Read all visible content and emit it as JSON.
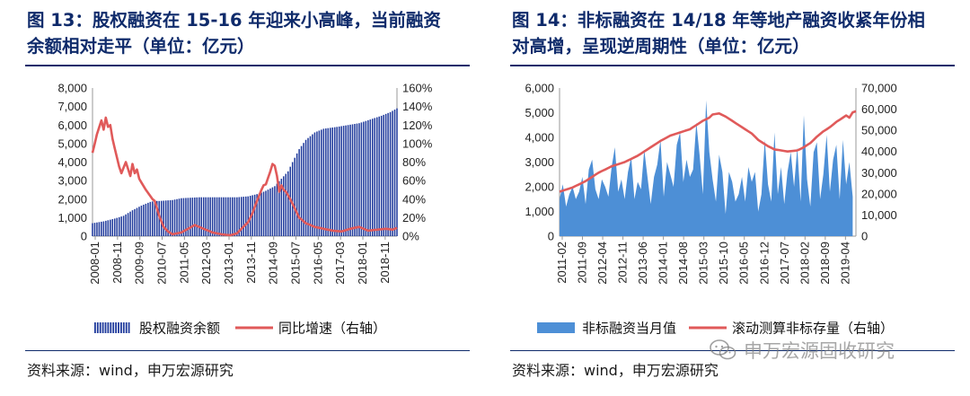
{
  "left": {
    "title_line1": "图 13：股权融资在 15-16 年迎来小高峰，当前融资",
    "title_line2": "余额相对走平（单位：亿元）",
    "source": "资料来源：wind，申万宏源研究",
    "legend_bar": "股权融资余额",
    "legend_line": "同比增速（右轴）"
  },
  "right": {
    "title_line1": "图 14：非标融资在 14/18 年等地产融资收紧年份相",
    "title_line2": "对高增，呈现逆周期性（单位：亿元）",
    "source": "资料来源：wind，申万宏源研究",
    "legend_area": "非标融资当月值",
    "legend_line": "滚动测算非标存量（右轴）"
  },
  "watermark": "申万宏源固收研究",
  "colors": {
    "bar": "#1f3a9c",
    "area": "#4d8fd6",
    "line": "#e05a5a",
    "title": "#0f2b6b"
  },
  "chart_data": [
    {
      "type": "bar",
      "x_tick_labels": [
        "2008-01",
        "2008-11",
        "2009-09",
        "2010-07",
        "2011-05",
        "2012-03",
        "2013-01",
        "2013-11",
        "2014-09",
        "2015-07",
        "2016-05",
        "2017-03",
        "2018-01",
        "2018-11"
      ],
      "y_left_ticks": [
        "0",
        "1,000",
        "2,000",
        "3,000",
        "4,000",
        "5,000",
        "6,000",
        "7,000",
        "8,000"
      ],
      "y_right_ticks": [
        "0%",
        "20%",
        "40%",
        "60%",
        "80%",
        "100%",
        "120%",
        "140%",
        "160%"
      ],
      "ylim_left": [
        0,
        8000
      ],
      "ylim_right": [
        0,
        160
      ],
      "series": [
        {
          "name": "股权融资余额",
          "type": "bar",
          "axis": "left",
          "points": [
            [
              0,
              700
            ],
            [
              5,
              800
            ],
            [
              10,
              950
            ],
            [
              14,
              1100
            ],
            [
              18,
              1400
            ],
            [
              22,
              1650
            ],
            [
              26,
              1850
            ],
            [
              28,
              1900
            ],
            [
              30,
              1900
            ],
            [
              36,
              1950
            ],
            [
              40,
              2050
            ],
            [
              48,
              2100
            ],
            [
              60,
              2100
            ],
            [
              65,
              2100
            ],
            [
              70,
              2150
            ],
            [
              75,
              2300
            ],
            [
              78,
              2450
            ],
            [
              82,
              2700
            ],
            [
              85,
              3100
            ],
            [
              88,
              3500
            ],
            [
              90,
              4000
            ],
            [
              93,
              4700
            ],
            [
              96,
              5200
            ],
            [
              100,
              5600
            ],
            [
              104,
              5800
            ],
            [
              110,
              5900
            ],
            [
              115,
              6000
            ],
            [
              120,
              6100
            ],
            [
              125,
              6300
            ],
            [
              130,
              6500
            ],
            [
              134,
              6700
            ],
            [
              137,
              6900
            ]
          ]
        },
        {
          "name": "同比增速（右轴）",
          "type": "line",
          "axis": "right",
          "points": [
            [
              0,
              90
            ],
            [
              2,
              110
            ],
            [
              4,
              125
            ],
            [
              5,
              115
            ],
            [
              6,
              128
            ],
            [
              7,
              118
            ],
            [
              8,
              120
            ],
            [
              9,
              105
            ],
            [
              10,
              95
            ],
            [
              11,
              85
            ],
            [
              12,
              75
            ],
            [
              13,
              68
            ],
            [
              15,
              80
            ],
            [
              17,
              65
            ],
            [
              18,
              78
            ],
            [
              19,
              68
            ],
            [
              20,
              72
            ],
            [
              21,
              62
            ],
            [
              24,
              50
            ],
            [
              27,
              40
            ],
            [
              28,
              38
            ],
            [
              30,
              22
            ],
            [
              32,
              10
            ],
            [
              34,
              5
            ],
            [
              36,
              2
            ],
            [
              40,
              4
            ],
            [
              43,
              8
            ],
            [
              46,
              12
            ],
            [
              50,
              8
            ],
            [
              54,
              4
            ],
            [
              58,
              2
            ],
            [
              62,
              1
            ],
            [
              65,
              3
            ],
            [
              67,
              8
            ],
            [
              70,
              15
            ],
            [
              72,
              25
            ],
            [
              74,
              38
            ],
            [
              76,
              50
            ],
            [
              77,
              55
            ],
            [
              78,
              56
            ],
            [
              80,
              70
            ],
            [
              81,
              78
            ],
            [
              82,
              76
            ],
            [
              83,
              65
            ],
            [
              84,
              48
            ],
            [
              85,
              55
            ],
            [
              86,
              50
            ],
            [
              87,
              48
            ],
            [
              89,
              40
            ],
            [
              91,
              30
            ],
            [
              93,
              20
            ],
            [
              96,
              14
            ],
            [
              100,
              10
            ],
            [
              104,
              8
            ],
            [
              108,
              6
            ],
            [
              112,
              5
            ],
            [
              116,
              8
            ],
            [
              120,
              10
            ],
            [
              124,
              6
            ],
            [
              128,
              7
            ],
            [
              132,
              8
            ],
            [
              135,
              7
            ],
            [
              137,
              9
            ]
          ]
        }
      ]
    },
    {
      "type": "area",
      "x_tick_labels": [
        "2011-02",
        "2011-09",
        "2012-04",
        "2012-11",
        "2013-06",
        "2014-01",
        "2014-08",
        "2015-03",
        "2015-10",
        "2016-05",
        "2016-12",
        "2017-07",
        "2018-02",
        "2018-09",
        "2019-04"
      ],
      "y_left_ticks": [
        "0",
        "1,000",
        "2,000",
        "3,000",
        "4,000",
        "5,000",
        "6,000"
      ],
      "y_right_ticks": [
        "0",
        "10,000",
        "20,000",
        "30,000",
        "40,000",
        "50,000",
        "60,000",
        "70,000"
      ],
      "ylim_left": [
        0,
        6000
      ],
      "ylim_right": [
        0,
        70000
      ],
      "series": [
        {
          "name": "非标融资当月值",
          "type": "area",
          "axis": "left",
          "values": [
            1500,
            2100,
            1200,
            1700,
            2000,
            1500,
            1800,
            2400,
            1300,
            2700,
            3100,
            1900,
            1500,
            2300,
            2000,
            1600,
            2800,
            3600,
            1800,
            2300,
            1500,
            2600,
            3200,
            1500,
            2200,
            1900,
            3500,
            2400,
            1300,
            2400,
            2900,
            3900,
            1600,
            3000,
            2500,
            2000,
            3700,
            4200,
            2200,
            3100,
            2400,
            2700,
            4600,
            3300,
            1700,
            5500,
            3400,
            2300,
            1400,
            3300,
            2600,
            900,
            2600,
            2200,
            1400,
            1700,
            2400,
            1400,
            2800,
            2200,
            2600,
            1000,
            1700,
            3900,
            2100,
            1400,
            4200,
            1700,
            2800,
            1300,
            2600,
            3400,
            2000,
            3600,
            1400,
            4900,
            2300,
            1200,
            3400,
            3800,
            1500,
            2500,
            4100,
            1800,
            3100,
            3700,
            1500,
            3900,
            2100,
            3000,
            1600
          ]
        },
        {
          "name": "滚动测算非标存量（右轴）",
          "type": "line",
          "axis": "right",
          "points": [
            [
              0,
              21000
            ],
            [
              4,
              23000
            ],
            [
              8,
              26000
            ],
            [
              12,
              30000
            ],
            [
              16,
              33000
            ],
            [
              20,
              35000
            ],
            [
              24,
              38000
            ],
            [
              28,
              42000
            ],
            [
              31,
              45000
            ],
            [
              34,
              47500
            ],
            [
              36,
              48500
            ],
            [
              38,
              49500
            ],
            [
              40,
              50500
            ],
            [
              42,
              52500
            ],
            [
              44,
              54500
            ],
            [
              46,
              56000
            ],
            [
              47,
              57500
            ],
            [
              49,
              58000
            ],
            [
              51,
              56500
            ],
            [
              53,
              54500
            ],
            [
              56,
              51500
            ],
            [
              59,
              48500
            ],
            [
              61,
              45500
            ],
            [
              64,
              42500
            ],
            [
              66,
              41000
            ],
            [
              68,
              40500
            ],
            [
              70,
              40000
            ],
            [
              73,
              40500
            ],
            [
              75,
              42000
            ],
            [
              77,
              44000
            ],
            [
              79,
              47000
            ],
            [
              81,
              49500
            ],
            [
              83,
              51500
            ],
            [
              85,
              54000
            ],
            [
              87,
              56000
            ],
            [
              88,
              57000
            ],
            [
              89,
              56000
            ],
            [
              90,
              58500
            ],
            [
              91,
              59000
            ]
          ]
        }
      ]
    }
  ]
}
